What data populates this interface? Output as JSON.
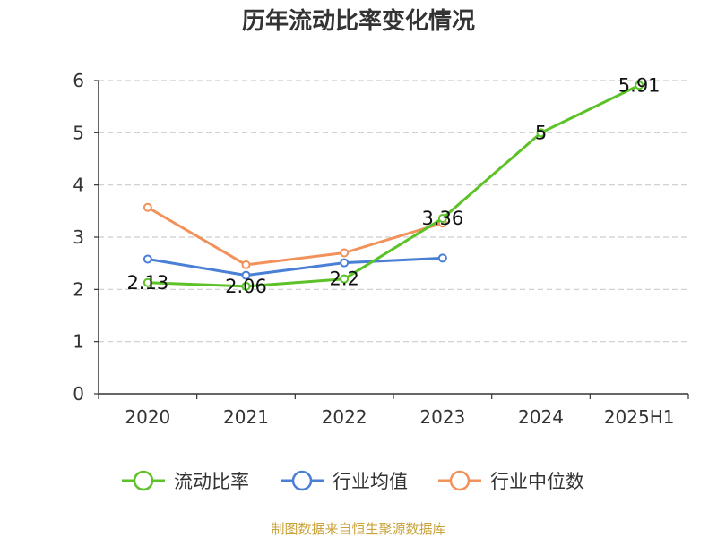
{
  "chart_data": {
    "type": "line",
    "title": "历年流动比率变化情况",
    "categories": [
      "2020",
      "2021",
      "2022",
      "2023",
      "2024",
      "2025H1"
    ],
    "ylim": [
      0,
      6
    ],
    "yticks": [
      "0",
      "1",
      "2",
      "3",
      "4",
      "5",
      "6"
    ],
    "grid": true,
    "legend_position": "bottom",
    "series": [
      {
        "name": "流动比率",
        "color": "#5cc228",
        "values": [
          2.13,
          2.06,
          2.2,
          3.36,
          5,
          5.91
        ],
        "labels": [
          "2.13",
          "2.06",
          "2.2",
          "3.36",
          "5",
          "5.91"
        ]
      },
      {
        "name": "行业均值",
        "color": "#4a7fd6",
        "values": [
          2.58,
          2.27,
          2.51,
          2.6,
          null,
          null
        ]
      },
      {
        "name": "行业中位数",
        "color": "#f2925a",
        "values": [
          3.57,
          2.47,
          2.7,
          3.27,
          null,
          null
        ]
      }
    ],
    "source": "制图数据来自恒生聚源数据库"
  }
}
